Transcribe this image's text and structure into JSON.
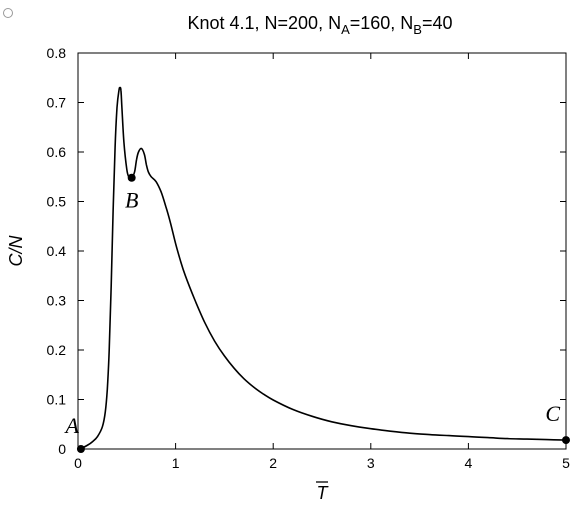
{
  "chart_data": {
    "type": "line",
    "title": "Knot 4.1, N=200, N_A=160, N_B=40",
    "title_parts": {
      "prefix": "Knot 4.1, N=200, N",
      "sub_a": "A",
      "mid": "=160, N",
      "sub_b": "B",
      "suffix": "=40"
    },
    "xlabel": "T",
    "xlabel_overline": true,
    "ylabel": "C/N",
    "xlim": [
      0,
      5
    ],
    "ylim": [
      0,
      0.8
    ],
    "xticks": [
      0,
      1,
      2,
      3,
      4,
      5
    ],
    "xtick_labels": [
      "0",
      "1",
      "2",
      "3",
      "4",
      "5"
    ],
    "yticks": [
      0,
      0.1,
      0.2,
      0.3,
      0.4,
      0.5,
      0.6,
      0.7,
      0.8
    ],
    "ytick_labels": [
      "0",
      "0.1",
      "0.2",
      "0.3",
      "0.4",
      "0.5",
      "0.6",
      "0.7",
      "0.8"
    ],
    "grid": false,
    "legend": false,
    "series": [
      {
        "color": "#000000",
        "x": [
          0,
          0.05,
          0.1,
          0.15,
          0.2,
          0.25,
          0.28,
          0.3,
          0.32,
          0.34,
          0.36,
          0.38,
          0.4,
          0.42,
          0.43,
          0.44,
          0.45,
          0.47,
          0.5,
          0.52,
          0.55,
          0.58,
          0.6,
          0.62,
          0.65,
          0.68,
          0.7,
          0.72,
          0.75,
          0.8,
          0.85,
          0.9,
          0.95,
          1.0,
          1.05,
          1.1,
          1.2,
          1.3,
          1.4,
          1.5,
          1.6,
          1.7,
          1.8,
          1.9,
          2.0,
          2.2,
          2.4,
          2.6,
          2.8,
          3.0,
          3.2,
          3.4,
          3.6,
          3.8,
          4.0,
          4.2,
          4.4,
          4.6,
          4.8,
          5.0
        ],
        "y": [
          0.0,
          0.003,
          0.008,
          0.015,
          0.025,
          0.045,
          0.075,
          0.12,
          0.2,
          0.33,
          0.48,
          0.61,
          0.69,
          0.725,
          0.73,
          0.725,
          0.69,
          0.62,
          0.565,
          0.55,
          0.548,
          0.56,
          0.585,
          0.6,
          0.607,
          0.595,
          0.575,
          0.56,
          0.55,
          0.54,
          0.52,
          0.49,
          0.455,
          0.415,
          0.38,
          0.35,
          0.3,
          0.255,
          0.218,
          0.188,
          0.163,
          0.142,
          0.125,
          0.111,
          0.099,
          0.08,
          0.066,
          0.055,
          0.047,
          0.041,
          0.036,
          0.032,
          0.029,
          0.027,
          0.025,
          0.023,
          0.021,
          0.02,
          0.019,
          0.018
        ]
      }
    ],
    "points": [
      {
        "label": "A",
        "x": 0.03,
        "y": 0.0
      },
      {
        "label": "B",
        "x": 0.55,
        "y": 0.548
      },
      {
        "label": "C",
        "x": 5.0,
        "y": 0.018
      }
    ]
  }
}
